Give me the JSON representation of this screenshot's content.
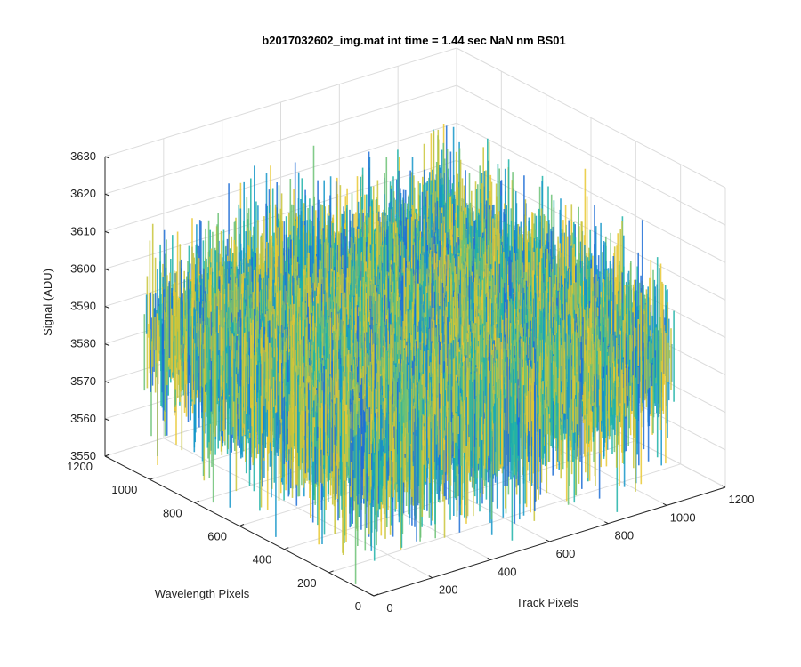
{
  "chart_data": {
    "type": "surface",
    "title": "b2017032602_img.mat int time = 1.44 sec  NaN nm BS01",
    "xlabel": "Track Pixels",
    "ylabel": "Wavelength Pixels",
    "zlabel": "Signal (ADU)",
    "xlim": [
      0,
      1200
    ],
    "ylim": [
      0,
      1200
    ],
    "zlim": [
      3550,
      3630
    ],
    "x_ticks": [
      "0",
      "200",
      "400",
      "600",
      "800",
      "1000",
      "1200"
    ],
    "y_ticks": [
      "0",
      "200",
      "400",
      "600",
      "800",
      "1000",
      "1200"
    ],
    "z_ticks": [
      "3550",
      "3560",
      "3570",
      "3580",
      "3590",
      "3600",
      "3610",
      "3620",
      "3630"
    ],
    "data_extent": {
      "x": [
        0,
        1024
      ],
      "y": [
        0,
        1024
      ]
    },
    "signal_summary": {
      "mean": 3588,
      "spread": 12,
      "min": 3555,
      "max": 3622
    },
    "grid": true,
    "colormap": [
      "#1f6fd6",
      "#1597c9",
      "#1fb3a8",
      "#6cc276",
      "#c9c53a",
      "#e9c832"
    ]
  }
}
